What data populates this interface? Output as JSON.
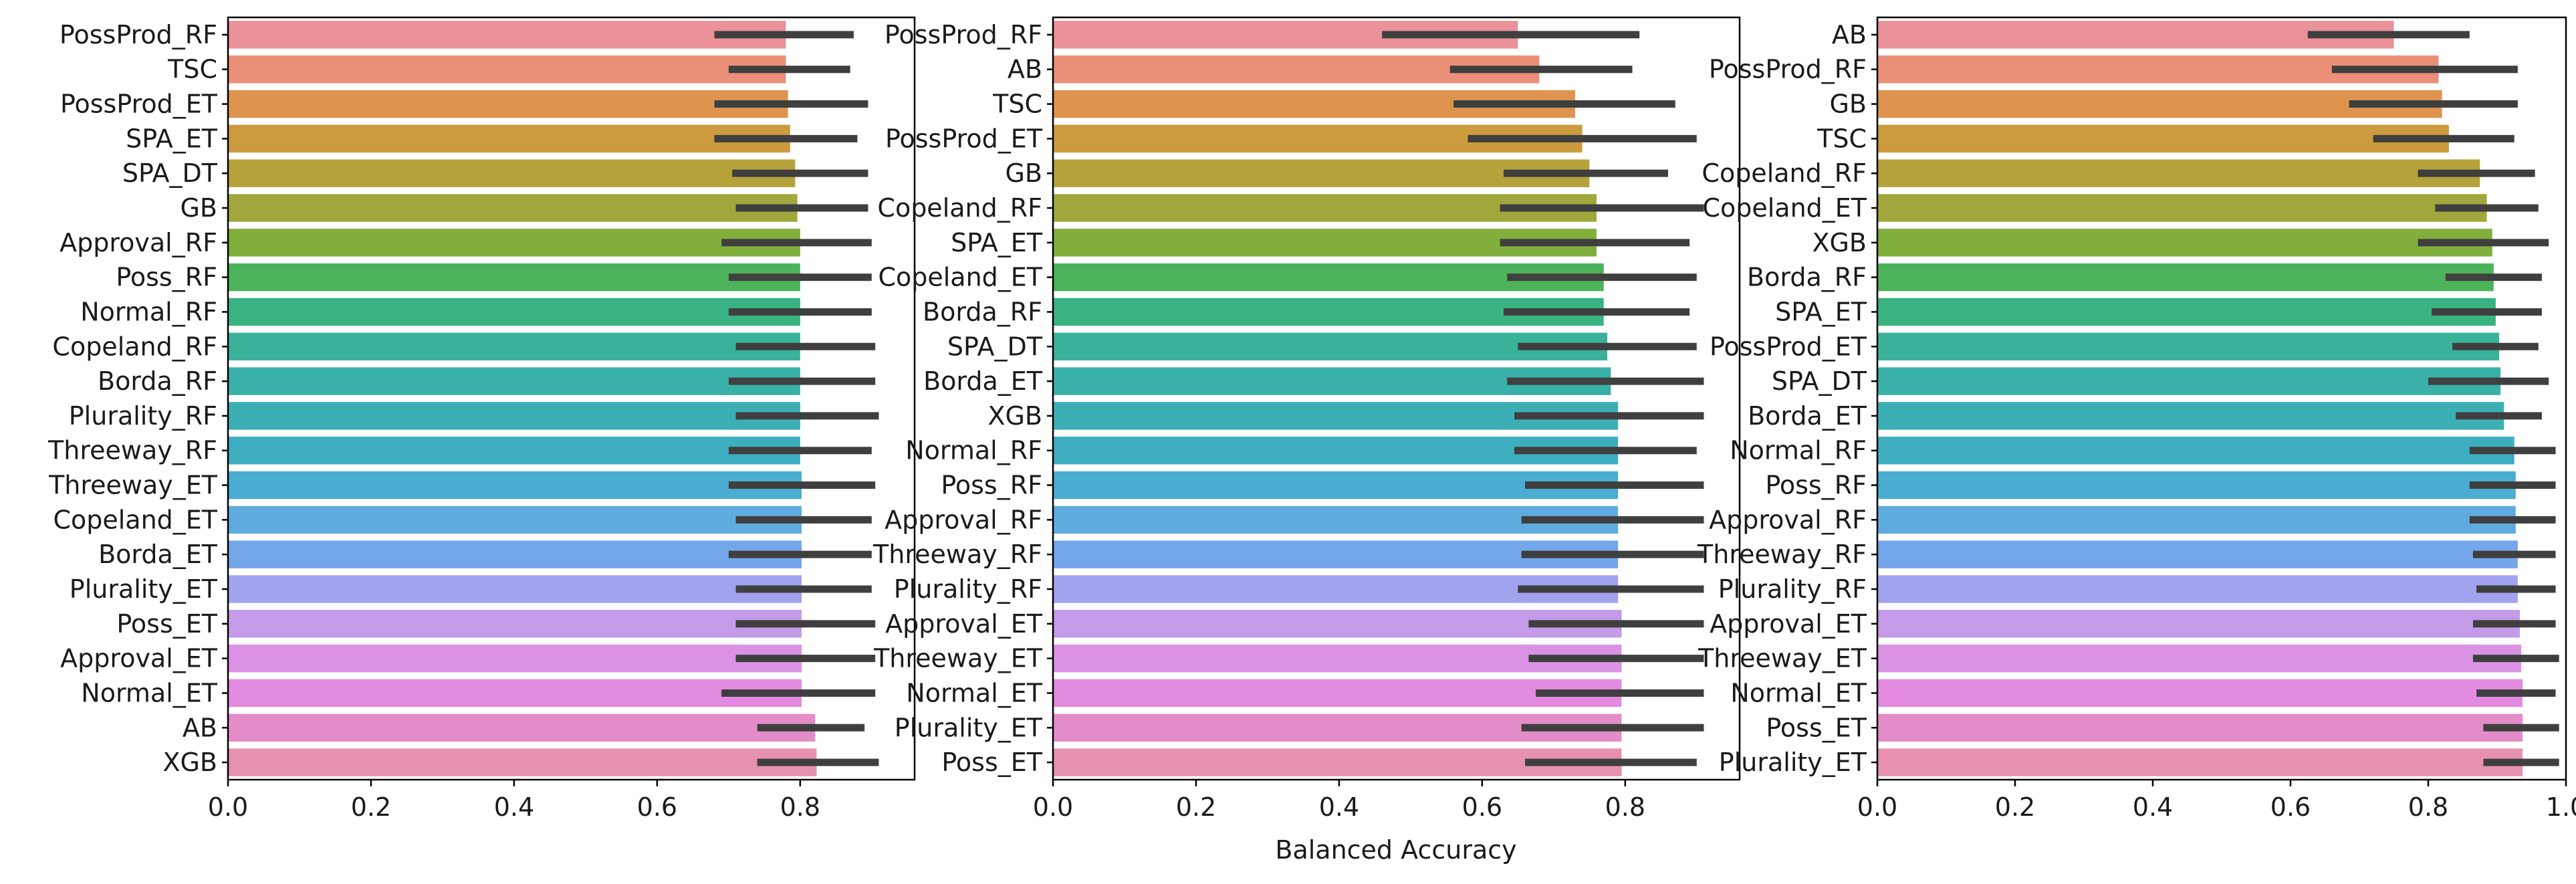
{
  "chart_data": [
    {
      "type": "bar",
      "orientation": "horizontal",
      "xlabel": "",
      "xlim": [
        0,
        0.96
      ],
      "xticks": [
        "0.0",
        "0.2",
        "0.4",
        "0.6",
        "0.8"
      ],
      "xtick_values": [
        0.0,
        0.2,
        0.4,
        0.6,
        0.8
      ],
      "categories": [
        "PossProd_RF",
        "TSC",
        "PossProd_ET",
        "SPA_ET",
        "SPA_DT",
        "GB",
        "Approval_RF",
        "Poss_RF",
        "Normal_RF",
        "Copeland_RF",
        "Borda_RF",
        "Plurality_RF",
        "Threeway_RF",
        "Threeway_ET",
        "Copeland_ET",
        "Borda_ET",
        "Plurality_ET",
        "Poss_ET",
        "Approval_ET",
        "Normal_ET",
        "AB",
        "XGB"
      ],
      "values": [
        0.78,
        0.78,
        0.783,
        0.786,
        0.793,
        0.796,
        0.8,
        0.8,
        0.8,
        0.8,
        0.8,
        0.8,
        0.8,
        0.802,
        0.802,
        0.802,
        0.802,
        0.802,
        0.802,
        0.802,
        0.821,
        0.823
      ],
      "ci_low": [
        0.68,
        0.7,
        0.68,
        0.68,
        0.705,
        0.71,
        0.69,
        0.7,
        0.7,
        0.71,
        0.7,
        0.71,
        0.7,
        0.7,
        0.71,
        0.7,
        0.71,
        0.71,
        0.71,
        0.69,
        0.74,
        0.74
      ],
      "ci_high": [
        0.875,
        0.87,
        0.895,
        0.88,
        0.895,
        0.895,
        0.9,
        0.9,
        0.9,
        0.905,
        0.905,
        0.91,
        0.9,
        0.905,
        0.9,
        0.9,
        0.9,
        0.905,
        0.905,
        0.905,
        0.89,
        0.91
      ],
      "colors": [
        "#ea9199",
        "#eb8f78",
        "#de944e",
        "#cc9b3d",
        "#b6a23a",
        "#a0a73d",
        "#80af3c",
        "#4db35a",
        "#39b382",
        "#3ab29a",
        "#39b1a8",
        "#3cafb5",
        "#3eadc0",
        "#4aadd1",
        "#5fabdf",
        "#74a6ea",
        "#a3a2ee",
        "#c39be9",
        "#db92e4",
        "#e28be0",
        "#e48cc8",
        "#e691b1"
      ]
    },
    {
      "type": "bar",
      "orientation": "horizontal",
      "xlabel": "Balanced Accuracy",
      "xlim": [
        0,
        0.96
      ],
      "xticks": [
        "0.0",
        "0.2",
        "0.4",
        "0.6",
        "0.8"
      ],
      "xtick_values": [
        0.0,
        0.2,
        0.4,
        0.6,
        0.8
      ],
      "categories": [
        "PossProd_RF",
        "AB",
        "TSC",
        "PossProd_ET",
        "GB",
        "Copeland_RF",
        "SPA_ET",
        "Copeland_ET",
        "Borda_RF",
        "SPA_DT",
        "Borda_ET",
        "XGB",
        "Normal_RF",
        "Poss_RF",
        "Approval_RF",
        "Threeway_RF",
        "Plurality_RF",
        "Approval_ET",
        "Threeway_ET",
        "Normal_ET",
        "Plurality_ET",
        "Poss_ET"
      ],
      "values": [
        0.65,
        0.68,
        0.73,
        0.74,
        0.75,
        0.76,
        0.76,
        0.77,
        0.77,
        0.775,
        0.78,
        0.79,
        0.79,
        0.79,
        0.79,
        0.79,
        0.79,
        0.795,
        0.795,
        0.795,
        0.795,
        0.795
      ],
      "ci_low": [
        0.46,
        0.555,
        0.56,
        0.58,
        0.63,
        0.625,
        0.625,
        0.635,
        0.63,
        0.65,
        0.635,
        0.645,
        0.645,
        0.66,
        0.655,
        0.655,
        0.65,
        0.665,
        0.665,
        0.675,
        0.655,
        0.66
      ],
      "ci_high": [
        0.82,
        0.81,
        0.87,
        0.9,
        0.86,
        0.91,
        0.89,
        0.9,
        0.89,
        0.9,
        0.91,
        0.91,
        0.9,
        0.91,
        0.91,
        0.91,
        0.91,
        0.91,
        0.91,
        0.91,
        0.91,
        0.9
      ],
      "colors": [
        "#ea9199",
        "#eb8f78",
        "#de944e",
        "#cc9b3d",
        "#b6a23a",
        "#a0a73d",
        "#80af3c",
        "#4db35a",
        "#39b382",
        "#3ab29a",
        "#39b1a8",
        "#3cafb5",
        "#3eadc0",
        "#4aadd1",
        "#5fabdf",
        "#74a6ea",
        "#a3a2ee",
        "#c39be9",
        "#db92e4",
        "#e28be0",
        "#e48cc8",
        "#e691b1"
      ]
    },
    {
      "type": "bar",
      "orientation": "horizontal",
      "xlabel": "",
      "xlim": [
        0,
        1.0
      ],
      "xticks": [
        "0.0",
        "0.2",
        "0.4",
        "0.6",
        "0.8",
        "1.0"
      ],
      "xtick_values": [
        0.0,
        0.2,
        0.4,
        0.6,
        0.8,
        1.0
      ],
      "categories": [
        "AB",
        "PossProd_RF",
        "GB",
        "TSC",
        "Copeland_RF",
        "Copeland_ET",
        "XGB",
        "Borda_RF",
        "SPA_ET",
        "PossProd_ET",
        "SPA_DT",
        "Borda_ET",
        "Normal_RF",
        "Poss_RF",
        "Approval_RF",
        "Threeway_RF",
        "Plurality_RF",
        "Approval_ET",
        "Threeway_ET",
        "Normal_ET",
        "Poss_ET",
        "Plurality_ET"
      ],
      "values": [
        0.75,
        0.815,
        0.82,
        0.83,
        0.875,
        0.885,
        0.893,
        0.895,
        0.898,
        0.903,
        0.905,
        0.91,
        0.925,
        0.927,
        0.927,
        0.93,
        0.93,
        0.933,
        0.935,
        0.937,
        0.937,
        0.937
      ],
      "ci_low": [
        0.625,
        0.66,
        0.685,
        0.72,
        0.785,
        0.81,
        0.785,
        0.825,
        0.805,
        0.835,
        0.8,
        0.84,
        0.86,
        0.86,
        0.86,
        0.865,
        0.87,
        0.865,
        0.865,
        0.87,
        0.88,
        0.88
      ],
      "ci_high": [
        0.86,
        0.93,
        0.93,
        0.925,
        0.955,
        0.96,
        0.975,
        0.965,
        0.965,
        0.96,
        0.975,
        0.965,
        0.985,
        0.985,
        0.985,
        0.985,
        0.985,
        0.985,
        0.99,
        0.985,
        0.99,
        0.99
      ],
      "colors": [
        "#ea9199",
        "#eb8f78",
        "#de944e",
        "#cc9b3d",
        "#b6a23a",
        "#a0a73d",
        "#80af3c",
        "#4db35a",
        "#39b382",
        "#3ab29a",
        "#39b1a8",
        "#3cafb5",
        "#3eadc0",
        "#4aadd1",
        "#5fabdf",
        "#74a6ea",
        "#a3a2ee",
        "#c39be9",
        "#db92e4",
        "#e28be0",
        "#e48cc8",
        "#e691b1"
      ]
    }
  ]
}
